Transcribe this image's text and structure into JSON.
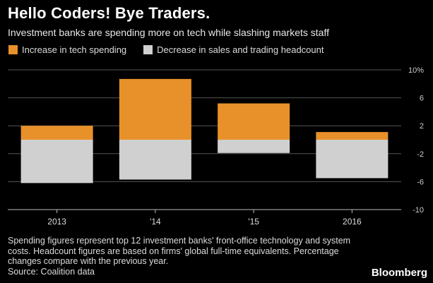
{
  "header": {
    "title": "Hello Coders! Bye Traders.",
    "subtitle": "Investment banks are spending more on tech while slashing markets staff"
  },
  "colors": {
    "tech": "#e8912a",
    "headcount": "#d0d0d0",
    "axis": "#bbbbbb",
    "grid": "#555555"
  },
  "chart_data": {
    "type": "bar",
    "categories": [
      "2013",
      "'14",
      "'15",
      "2016"
    ],
    "series": [
      {
        "name": "Increase in tech spending",
        "values": [
          2.0,
          8.7,
          5.2,
          1.1
        ]
      },
      {
        "name": "Decrease in sales and trading headcount",
        "values": [
          -6.2,
          -5.7,
          -1.9,
          -5.5
        ]
      }
    ],
    "y_ticks": [
      "10%",
      "6",
      "2",
      "-2",
      "-6",
      "-10"
    ],
    "y_tick_values": [
      10,
      6,
      2,
      -2,
      -6,
      -10
    ],
    "ylim": [
      -10,
      10
    ],
    "legend_position": "top-left",
    "grid": true
  },
  "footer": {
    "note_lines": [
      "Spending figures represent top 12 investment banks' front-office technology and system",
      "costs. Headcount figures are based on firms' global full-time equivalents. Percentage",
      "changes compare with the previous year."
    ],
    "source": "Source: Coalition data",
    "brand": "Bloomberg"
  }
}
